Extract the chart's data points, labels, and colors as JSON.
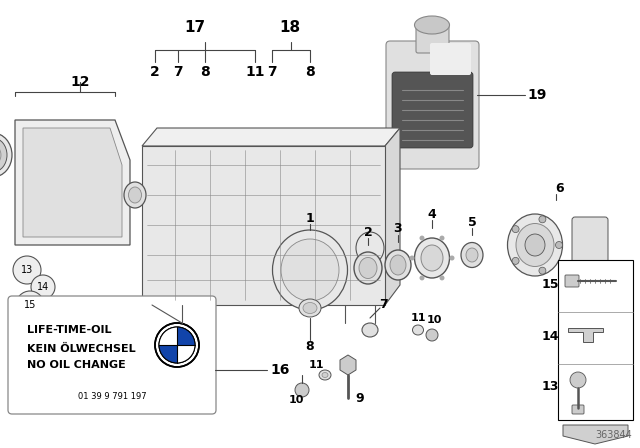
{
  "bg_color": "#ffffff",
  "diagram_number": "363844",
  "line_color": "#444444",
  "light_gray": "#bbbbbb",
  "mid_gray": "#888888",
  "dark_gray": "#555555",
  "bottle_body": "#d8d8d8",
  "bottle_label": "#666666",
  "lifetimeoil_lines": [
    "LIFE-TIME-OIL",
    "KEIN ÖLWECHSEL",
    "NO OIL CHANGE"
  ],
  "lifetimeoil_sub": "01 39 9 791 197",
  "bracket17_label": "17",
  "bracket17_children": [
    "2",
    "7",
    "8",
    "11"
  ],
  "bracket18_label": "18",
  "bracket18_children": [
    "7",
    "8"
  ]
}
